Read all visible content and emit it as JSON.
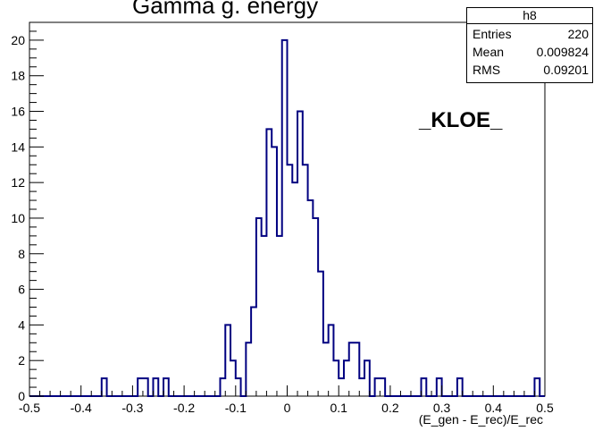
{
  "chart_data": {
    "type": "bar",
    "title": "Gamma g. energy",
    "xlabel": "(E_gen - E_rec)/E_rec",
    "ylabel": "",
    "xlim": [
      -0.5,
      0.5
    ],
    "ylim": [
      0,
      21
    ],
    "bin_width": 0.01,
    "x_ticks": [
      "-0.5",
      "-0.4",
      "-0.3",
      "-0.2",
      "-0.1",
      "0",
      "0.1",
      "0.2",
      "0.3",
      "0.4",
      "0.5"
    ],
    "y_ticks": [
      "0",
      "2",
      "4",
      "6",
      "8",
      "10",
      "12",
      "14",
      "16",
      "18",
      "20"
    ],
    "histogram_name": "h8",
    "stats": [
      {
        "label": "Entries",
        "value": "220"
      },
      {
        "label": "Mean",
        "value": "0.009824"
      },
      {
        "label": "RMS",
        "value": "0.09201"
      }
    ],
    "annotation": "_KLOE_",
    "line_color": "#000080",
    "bins": [
      {
        "x": -0.36,
        "y": 1
      },
      {
        "x": -0.29,
        "y": 1
      },
      {
        "x": -0.28,
        "y": 1
      },
      {
        "x": -0.26,
        "y": 1
      },
      {
        "x": -0.24,
        "y": 1
      },
      {
        "x": -0.13,
        "y": 1
      },
      {
        "x": -0.12,
        "y": 4
      },
      {
        "x": -0.11,
        "y": 2
      },
      {
        "x": -0.1,
        "y": 1
      },
      {
        "x": -0.08,
        "y": 3
      },
      {
        "x": -0.07,
        "y": 5
      },
      {
        "x": -0.06,
        "y": 10
      },
      {
        "x": -0.05,
        "y": 9
      },
      {
        "x": -0.04,
        "y": 15
      },
      {
        "x": -0.03,
        "y": 14
      },
      {
        "x": -0.02,
        "y": 9
      },
      {
        "x": -0.01,
        "y": 20
      },
      {
        "x": 0.0,
        "y": 13
      },
      {
        "x": 0.01,
        "y": 12
      },
      {
        "x": 0.02,
        "y": 16
      },
      {
        "x": 0.03,
        "y": 13
      },
      {
        "x": 0.04,
        "y": 11
      },
      {
        "x": 0.05,
        "y": 10
      },
      {
        "x": 0.06,
        "y": 7
      },
      {
        "x": 0.07,
        "y": 3
      },
      {
        "x": 0.08,
        "y": 4
      },
      {
        "x": 0.09,
        "y": 2
      },
      {
        "x": 0.1,
        "y": 1
      },
      {
        "x": 0.11,
        "y": 2
      },
      {
        "x": 0.12,
        "y": 3
      },
      {
        "x": 0.13,
        "y": 3
      },
      {
        "x": 0.14,
        "y": 1
      },
      {
        "x": 0.15,
        "y": 2
      },
      {
        "x": 0.17,
        "y": 1
      },
      {
        "x": 0.18,
        "y": 1
      },
      {
        "x": 0.26,
        "y": 1
      },
      {
        "x": 0.29,
        "y": 1
      },
      {
        "x": 0.33,
        "y": 1
      },
      {
        "x": 0.48,
        "y": 1
      }
    ]
  }
}
